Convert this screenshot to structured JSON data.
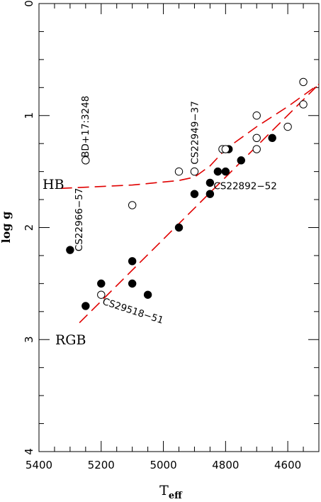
{
  "chart_data": {
    "type": "scatter",
    "xlabel": "T",
    "xlabel_sub": "eff",
    "ylabel": "log g",
    "xlim": [
      5400,
      4500
    ],
    "ylim": [
      4,
      0
    ],
    "x_ticks": [
      5400,
      5200,
      5000,
      4800,
      4600
    ],
    "y_ticks": [
      0,
      1,
      2,
      3,
      4
    ],
    "grid": false,
    "series": [
      {
        "marker": "filled-circle",
        "points": [
          {
            "x": 5300,
            "y": 2.2
          },
          {
            "x": 5250,
            "y": 2.7
          },
          {
            "x": 5200,
            "y": 2.5
          },
          {
            "x": 5100,
            "y": 2.3
          },
          {
            "x": 5100,
            "y": 2.5
          },
          {
            "x": 5050,
            "y": 2.6
          },
          {
            "x": 4950,
            "y": 2.0
          },
          {
            "x": 4900,
            "y": 1.7
          },
          {
            "x": 4850,
            "y": 1.6
          },
          {
            "x": 4850,
            "y": 1.7
          },
          {
            "x": 4825,
            "y": 1.5
          },
          {
            "x": 4800,
            "y": 1.5
          },
          {
            "x": 4790,
            "y": 1.3
          },
          {
            "x": 4750,
            "y": 1.4
          },
          {
            "x": 4650,
            "y": 1.2
          }
        ]
      },
      {
        "marker": "open-circle",
        "points": [
          {
            "x": 5250,
            "y": 1.4
          },
          {
            "x": 5200,
            "y": 2.6
          },
          {
            "x": 5100,
            "y": 1.8
          },
          {
            "x": 4950,
            "y": 1.5
          },
          {
            "x": 4900,
            "y": 1.5
          },
          {
            "x": 4810,
            "y": 1.3
          },
          {
            "x": 4800,
            "y": 1.3
          },
          {
            "x": 4700,
            "y": 1.0
          },
          {
            "x": 4700,
            "y": 1.2
          },
          {
            "x": 4700,
            "y": 1.3
          },
          {
            "x": 4600,
            "y": 1.1
          },
          {
            "x": 4550,
            "y": 0.7
          },
          {
            "x": 4550,
            "y": 0.9
          }
        ]
      }
    ],
    "lines": [
      {
        "label": "HB",
        "style": "dashed",
        "color": "#e00000",
        "points": [
          [
            5330,
            1.65
          ],
          [
            5100,
            1.62
          ],
          [
            4950,
            1.58
          ],
          [
            4900,
            1.55
          ],
          [
            4850,
            1.45
          ],
          [
            4800,
            1.3
          ],
          [
            4700,
            1.1
          ],
          [
            4600,
            0.92
          ],
          [
            4500,
            0.72
          ]
        ]
      },
      {
        "label": "RGB",
        "style": "dashed",
        "color": "#e00000",
        "points": [
          [
            5270,
            2.85
          ],
          [
            4500,
            0.72
          ]
        ]
      }
    ],
    "star_labels": [
      {
        "text": "BD+17:3248",
        "x": 5250,
        "y": 1.4
      },
      {
        "text": "CS22949−37",
        "x": 4900,
        "y": 1.5
      },
      {
        "text": "CS22892−52",
        "x": 4850,
        "y": 1.6
      },
      {
        "text": "CS22966−57",
        "x": 5300,
        "y": 2.2
      },
      {
        "text": "CS29518−51",
        "x": 5200,
        "y": 2.6
      }
    ]
  }
}
